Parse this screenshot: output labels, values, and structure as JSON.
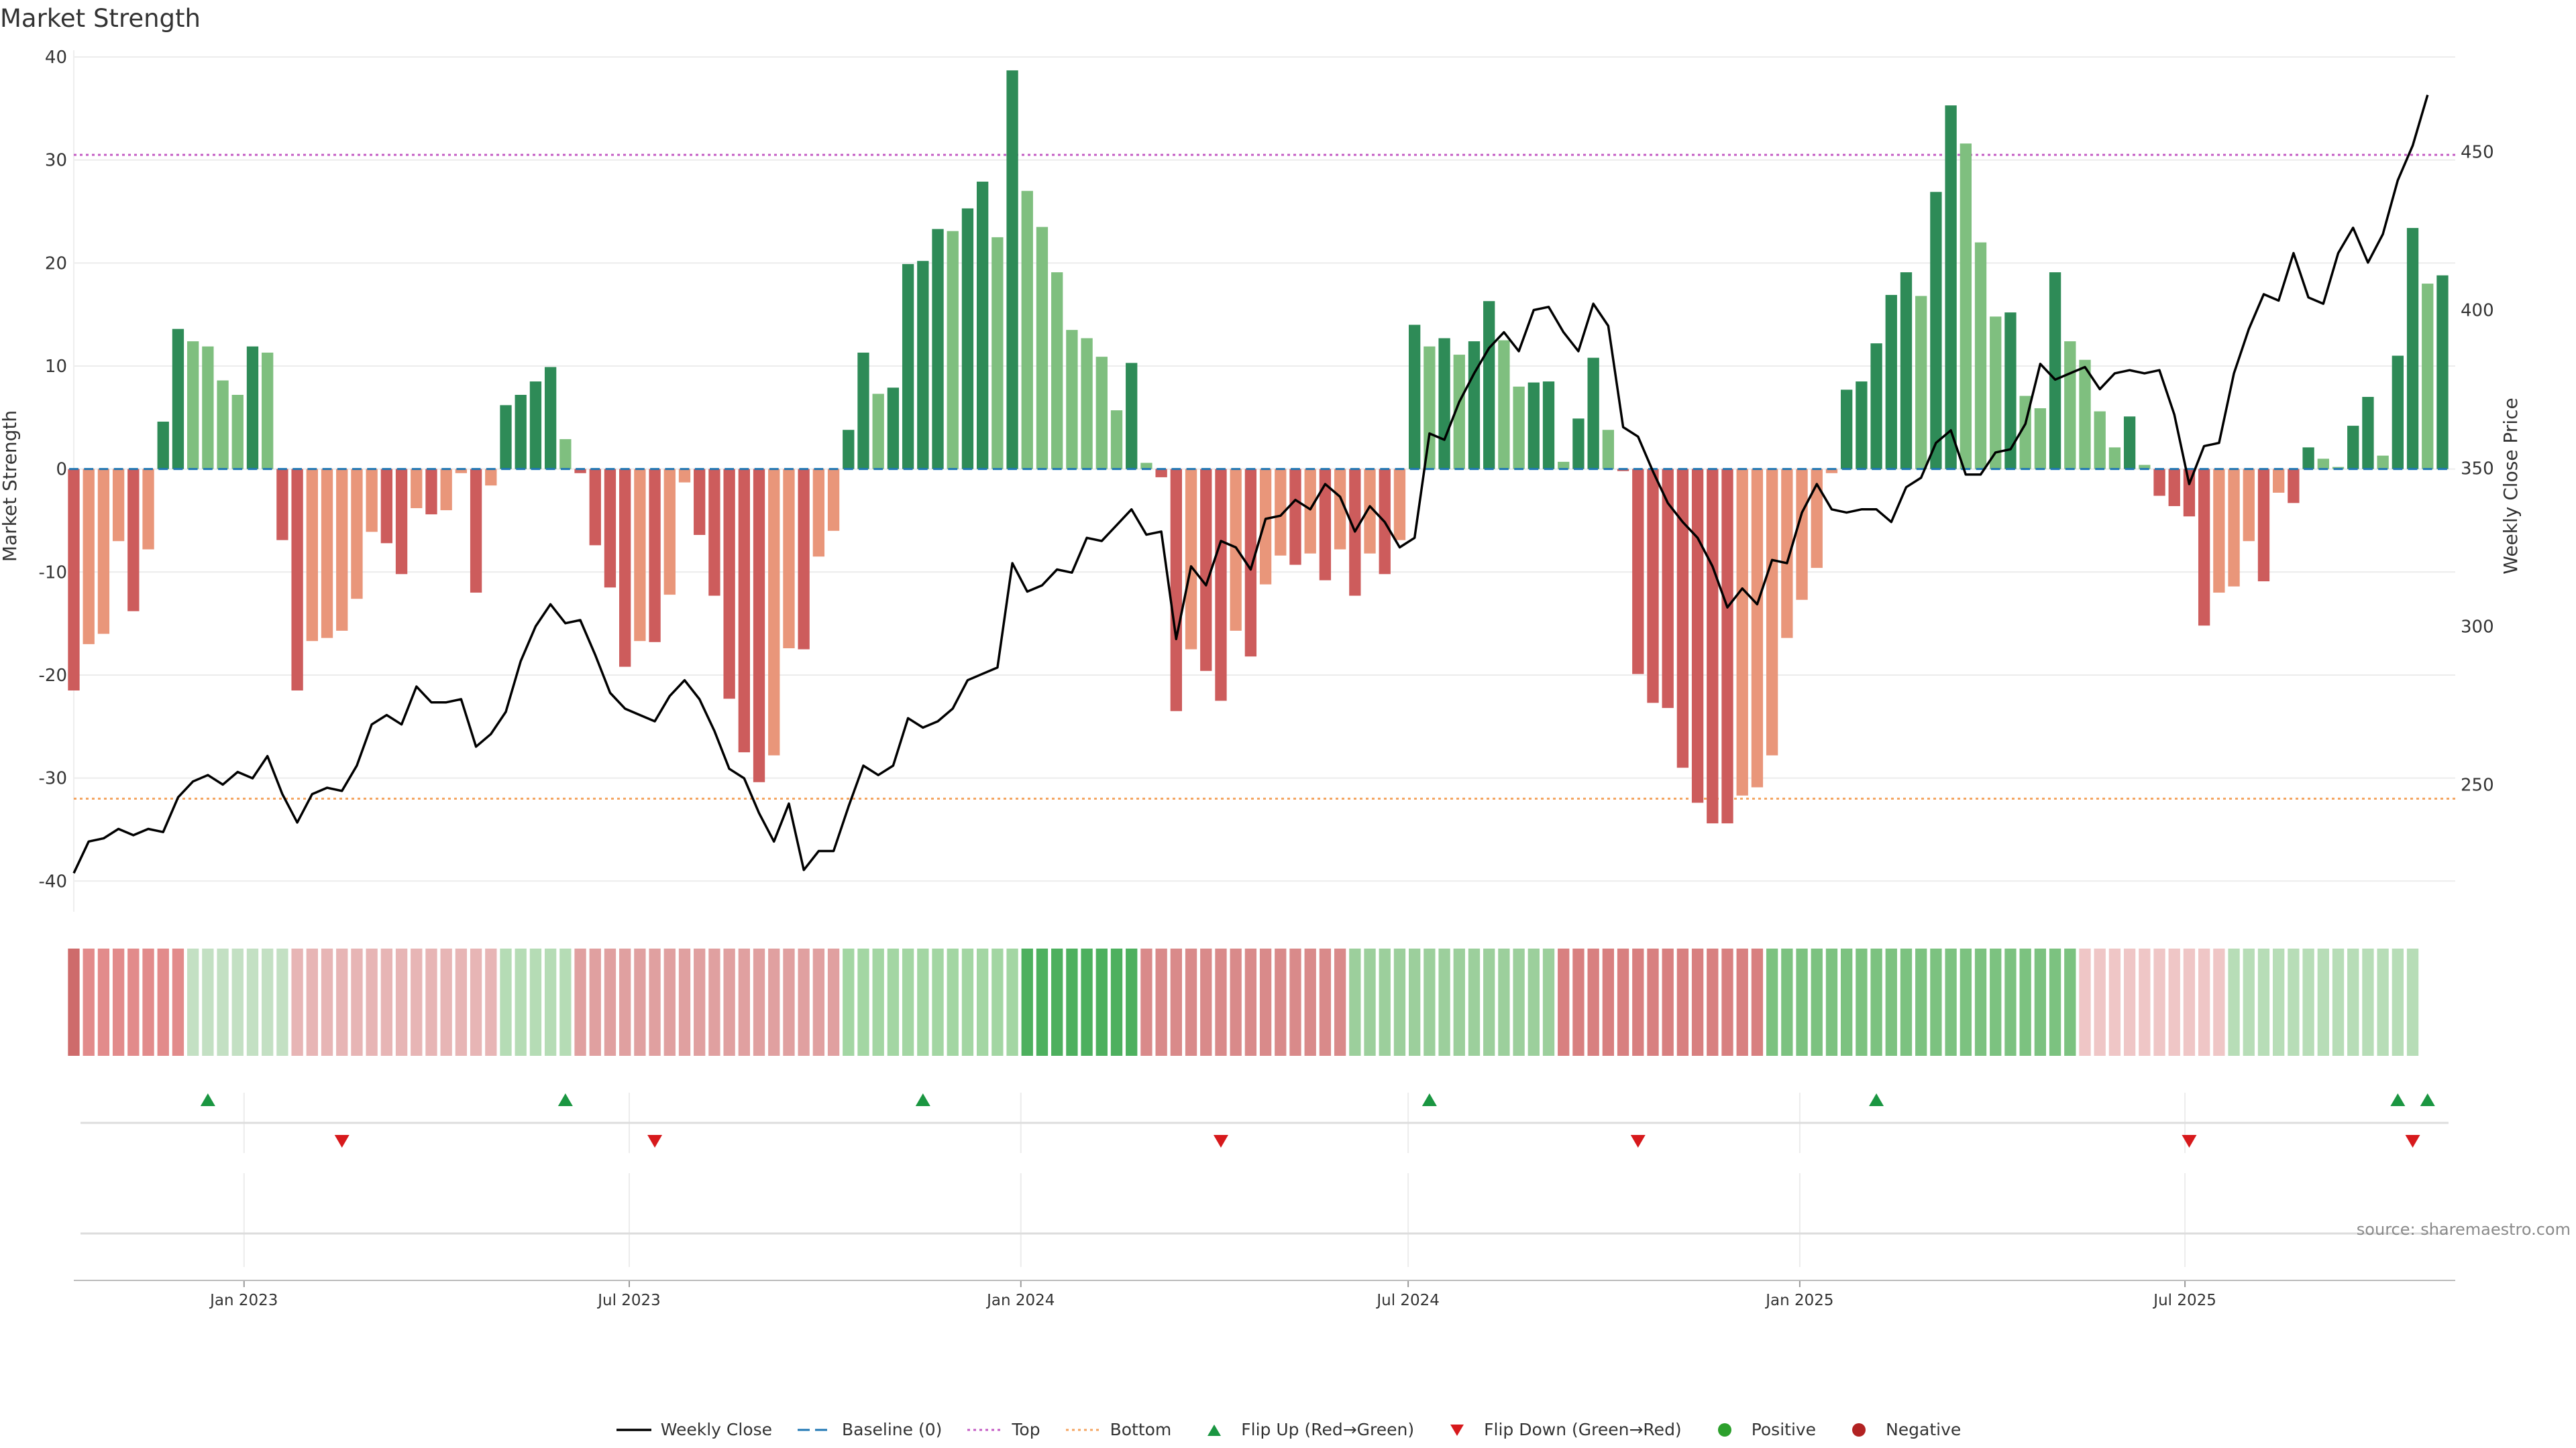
{
  "title": "Market Strength",
  "source": "source: sharemaestro.com",
  "colors": {
    "strong_green": "#2e8b57",
    "light_green": "#7fbf7f",
    "strong_red": "#cd5c5c",
    "light_red": "#e9967a",
    "price_line": "#000000",
    "baseline": "#1f77b4",
    "top": "#c45cc4",
    "bottom": "#f4a460",
    "flip_up": "#1a9641",
    "flip_down": "#d7191c",
    "positive": "#2ca02c",
    "negative": "#b22222"
  },
  "legend": [
    {
      "key": "weekly_close",
      "label": "Weekly Close",
      "symbol": "line"
    },
    {
      "key": "baseline",
      "label": "Baseline (0)",
      "symbol": "dash"
    },
    {
      "key": "top",
      "label": "Top",
      "symbol": "dot"
    },
    {
      "key": "bottom",
      "label": "Bottom",
      "symbol": "dot"
    },
    {
      "key": "flip_up",
      "label": "Flip Up (Red→Green)",
      "symbol": "tri-up"
    },
    {
      "key": "flip_down",
      "label": "Flip Down (Green→Red)",
      "symbol": "tri-down"
    },
    {
      "key": "positive",
      "label": "Positive",
      "symbol": "circle"
    },
    {
      "key": "negative",
      "label": "Negative",
      "symbol": "circle"
    }
  ],
  "chart_data": {
    "type": "bar",
    "title": "Market Strength",
    "ylabel": "Market Strength",
    "y2label": "Weekly Close Price",
    "ylim": [
      -42,
      40
    ],
    "y2lim": [
      213,
      480
    ],
    "yticks": [
      40,
      30,
      20,
      10,
      0,
      -10,
      -20,
      -30,
      -40
    ],
    "y2ticks": [
      450,
      400,
      350,
      300,
      250
    ],
    "x_start": "2022-10-13",
    "x_step_days": 7,
    "x_end": "2025-11-05",
    "xticks": [
      {
        "date": "2023-01-01",
        "label": "Jan 2023"
      },
      {
        "date": "2023-07-01",
        "label": "Jul 2023"
      },
      {
        "date": "2024-01-01",
        "label": "Jan 2024"
      },
      {
        "date": "2024-07-01",
        "label": "Jul 2024"
      },
      {
        "date": "2025-01-01",
        "label": "Jan 2025"
      },
      {
        "date": "2025-07-01",
        "label": "Jul 2025"
      }
    ],
    "top_line": 30.5,
    "bottom_line": -32,
    "series": [
      {
        "name": "Market Strength",
        "values": [
          -21.5,
          -17,
          -16,
          -7,
          -13.8,
          -7.8,
          4.6,
          13.6,
          12.4,
          11.9,
          8.6,
          7.2,
          11.9,
          11.3,
          -6.9,
          -21.5,
          -16.7,
          -16.4,
          -15.7,
          -12.6,
          -6.1,
          -7.2,
          -10.2,
          -3.8,
          -4.4,
          -4,
          -0.4,
          -12,
          -1.6,
          6.2,
          7.2,
          8.5,
          9.9,
          2.9,
          -0.4,
          -7.4,
          -11.5,
          -19.2,
          -16.7,
          -16.8,
          -12.2,
          -1.3,
          -6.4,
          -12.3,
          -22.3,
          -27.5,
          -30.4,
          -27.8,
          -17.4,
          -17.5,
          -8.5,
          -6,
          3.8,
          11.3,
          7.3,
          7.9,
          19.9,
          20.2,
          23.3,
          23.1,
          25.3,
          27.9,
          22.5,
          38.7,
          27,
          23.5,
          19.1,
          13.5,
          12.7,
          10.9,
          5.7,
          10.3,
          0.6,
          -0.8,
          -23.5,
          -17.5,
          -19.6,
          -22.5,
          -15.7,
          -18.2,
          -11.2,
          -8.4,
          -9.3,
          -8.2,
          -10.8,
          -7.8,
          -12.3,
          -8.2,
          -10.2,
          -6.9,
          14,
          11.9,
          12.7,
          11.1,
          12.4,
          16.3,
          12.5,
          8,
          8.4,
          8.5,
          0.7,
          4.9,
          10.8,
          3.8,
          -0.2,
          -19.9,
          -22.7,
          -23.2,
          -29,
          -32.4,
          -34.4,
          -34.4,
          -31.7,
          -30.9,
          -27.8,
          -16.4,
          -12.7,
          -9.6,
          -0.4,
          7.7,
          8.5,
          12.2,
          16.9,
          19.1,
          16.8,
          26.9,
          35.3,
          31.6,
          22,
          14.8,
          15.2,
          7.1,
          5.9,
          19.1,
          12.4,
          10.6,
          5.6,
          2.1,
          5.1,
          0.4,
          -2.6,
          -3.6,
          -4.6,
          -15.2,
          -12,
          -11.4,
          -7,
          -10.9,
          -2.3,
          -3.3,
          2.1,
          1,
          0.2,
          4.2,
          7,
          1.3,
          11,
          23.4,
          18,
          18.8
        ]
      },
      {
        "name": "Weekly Close",
        "values": [
          222,
          232,
          233,
          236,
          234,
          236,
          235,
          246,
          251,
          253,
          250,
          254,
          252,
          259,
          247,
          238,
          247,
          249,
          248,
          256,
          269,
          272,
          269,
          281,
          276,
          276,
          277,
          262,
          266,
          273,
          289,
          300,
          307,
          301,
          302,
          291,
          279,
          274,
          272,
          270,
          278,
          283,
          277,
          267,
          255,
          252,
          241,
          232,
          244,
          223,
          229,
          229,
          243,
          256,
          253,
          256,
          271,
          268,
          270,
          274,
          283,
          285,
          287,
          320,
          311,
          313,
          318,
          317,
          328,
          327,
          332,
          337,
          329,
          330,
          296,
          319,
          313,
          327,
          325,
          318,
          334,
          335,
          340,
          337,
          345,
          341,
          330,
          338,
          333,
          325,
          328,
          361,
          359,
          371,
          380,
          388,
          393,
          387,
          400,
          401,
          393,
          387,
          402,
          395,
          363,
          360,
          349,
          339,
          333,
          328,
          319,
          306,
          312,
          307,
          321,
          320,
          336,
          345,
          337,
          336,
          337,
          337,
          333,
          344,
          347,
          358,
          362,
          348,
          348,
          355,
          356,
          364,
          383,
          378,
          380,
          382,
          375,
          380,
          381,
          380,
          381,
          367,
          345,
          357,
          358,
          380,
          394,
          405,
          403,
          418,
          404,
          402,
          418,
          426,
          415,
          424,
          441,
          452,
          468
        ]
      }
    ],
    "color_strip": [
      {
        "color": "#ce6b6b",
        "count": 1
      },
      {
        "color": "#e28b8b",
        "count": 7
      },
      {
        "color": "#c3e0c3",
        "count": 7
      },
      {
        "color": "#e7b5b5",
        "count": 14
      },
      {
        "color": "#b5dcb5",
        "count": 5
      },
      {
        "color": "#e0a0a0",
        "count": 18
      },
      {
        "color": "#a3d6a3",
        "count": 12
      },
      {
        "color": "#4db05e",
        "count": 8
      },
      {
        "color": "#d98a8a",
        "count": 14
      },
      {
        "color": "#9ccf9c",
        "count": 14
      },
      {
        "color": "#d88080",
        "count": 14
      },
      {
        "color": "#7cc280",
        "count": 21
      },
      {
        "color": "#efc6c6",
        "count": 10
      },
      {
        "color": "#b7ddb7",
        "count": 13
      }
    ],
    "flips_up": [
      "2022-12-15",
      "2023-06-01",
      "2023-11-16",
      "2024-07-11",
      "2025-02-06",
      "2025-10-09",
      "2025-10-23"
    ],
    "flips_down": [
      "2023-02-16",
      "2023-07-13",
      "2024-04-04",
      "2024-10-17",
      "2025-07-03",
      "2025-10-16"
    ],
    "positive_points": [],
    "negative_points": []
  }
}
